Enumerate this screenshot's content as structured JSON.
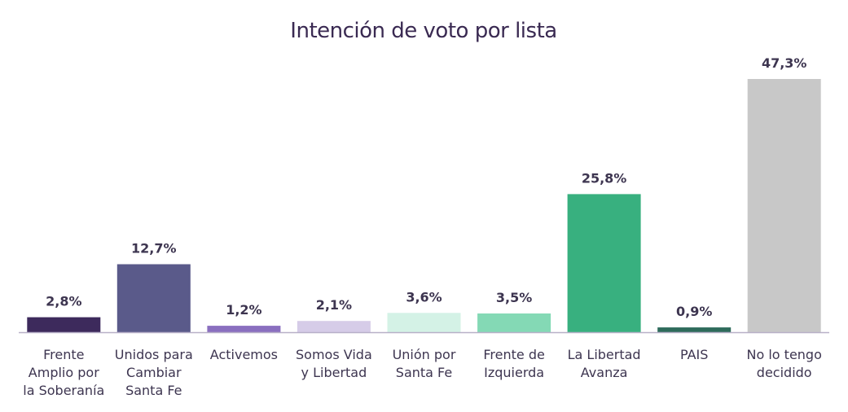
{
  "chart_data": {
    "type": "bar",
    "title": "Intención de voto por lista",
    "xlabel": "",
    "ylabel": "",
    "ylim": [
      0,
      50
    ],
    "grid": false,
    "legend": "none",
    "categories": [
      "Frente Amplio por la Soberanía",
      "Unidos para Cambiar Santa Fe",
      "Activemos",
      "Somos Vida y Libertad",
      "Unión por Santa Fe",
      "Frente de Izquierda",
      "La Libertad Avanza",
      "PAIS",
      "No lo tengo decidido"
    ],
    "category_label_lines": [
      [
        "Frente",
        "Amplio por",
        "la Soberanía"
      ],
      [
        "Unidos para",
        "Cambiar",
        "Santa Fe"
      ],
      [
        "Activemos"
      ],
      [
        "Somos Vida",
        "y Libertad"
      ],
      [
        "Unión por",
        "Santa Fe"
      ],
      [
        "Frente de",
        "Izquierda"
      ],
      [
        "La Libertad",
        "Avanza"
      ],
      [
        "PAIS"
      ],
      [
        "No lo tengo",
        "decidido"
      ]
    ],
    "values": [
      2.8,
      12.7,
      1.2,
      2.1,
      3.6,
      3.5,
      25.8,
      0.9,
      47.3
    ],
    "value_labels": [
      "2,8%",
      "12,7%",
      "1,2%",
      "2,1%",
      "3,6%",
      "3,5%",
      "25,8%",
      "0,9%",
      "47,3%"
    ],
    "colors": [
      "#3d2a5c",
      "#5a5a8a",
      "#8a6fbf",
      "#d6cce8",
      "#d4f2e6",
      "#84d9b5",
      "#38b07f",
      "#2e6b5b",
      "#c8c8c8"
    ],
    "axis_color": "#b8b0c8"
  }
}
